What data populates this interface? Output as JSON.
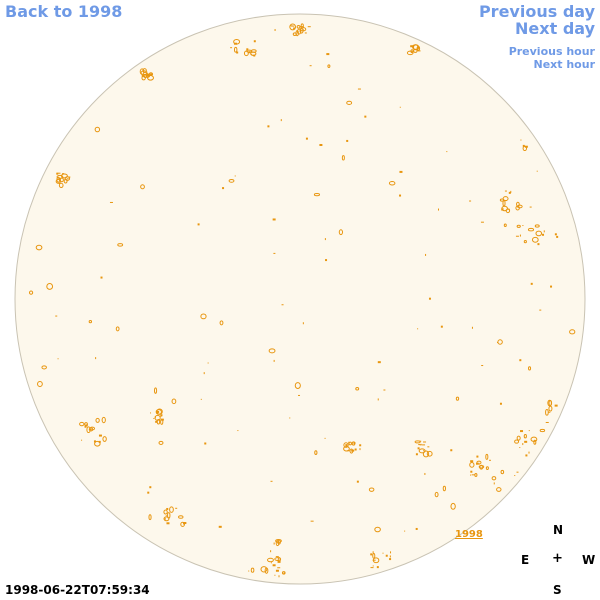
{
  "nav": {
    "back": "Back to 1998",
    "previous_day": "Previous day",
    "next_day": "Next day",
    "previous_hour": "Previous hour",
    "next_hour": "Next hour"
  },
  "image": {
    "year_label": "1998",
    "timestamp": "1998-06-22T07:59:34"
  },
  "compass": {
    "north": "N",
    "east": "E",
    "center": "+",
    "west": "W",
    "south": "S"
  },
  "colors": {
    "link": "#6f9ae6",
    "disk_fill": "#fdf8ec",
    "disk_edge": "#c9c3b3",
    "contour": "#e8960f"
  }
}
